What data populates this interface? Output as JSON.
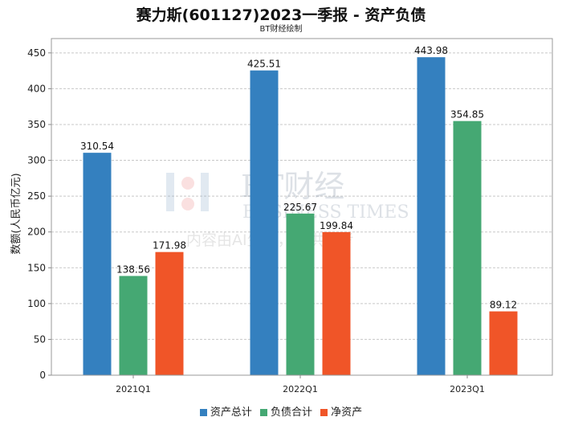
{
  "chart_data": {
    "type": "bar",
    "title": "赛力斯(601127)2023一季报 - 资产负债",
    "subtitle": "BT财经绘制",
    "xlabel": "",
    "ylabel": "数额(人民币亿元)",
    "ylim": [
      0,
      470
    ],
    "yticks": [
      0,
      50,
      100,
      150,
      200,
      250,
      300,
      350,
      400,
      450
    ],
    "grid": true,
    "legend_position": "bottom-center",
    "categories": [
      "2021Q1",
      "2022Q1",
      "2023Q1"
    ],
    "series": [
      {
        "name": "资产总计",
        "color": "#3480bf",
        "values": [
          310.54,
          425.51,
          443.98
        ]
      },
      {
        "name": "负债合计",
        "color": "#45a873",
        "values": [
          138.56,
          225.67,
          354.85
        ]
      },
      {
        "name": "净资产",
        "color": "#f05528",
        "values": [
          171.98,
          199.84,
          89.12
        ]
      }
    ]
  },
  "watermark": {
    "brand": "BT财经",
    "english": "BUSINESS TIMES",
    "notice": "内容由AI生成，仅供参考"
  }
}
